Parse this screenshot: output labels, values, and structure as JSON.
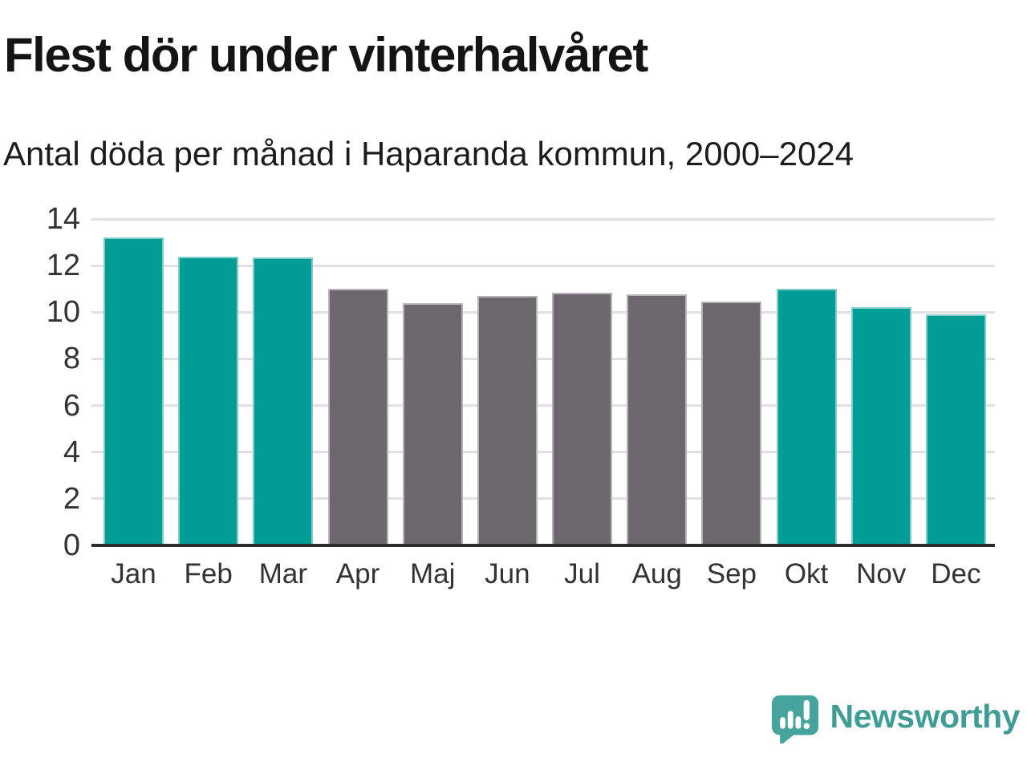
{
  "header": {
    "title": "Flest dör under vinterhalvåret",
    "subtitle": "Antal döda per månad i Haparanda kommun, 2000–2024"
  },
  "chart_data": {
    "type": "bar",
    "title": "Flest dör under vinterhalvåret",
    "subtitle": "Antal döda per månad i Haparanda kommun, 2000–2024",
    "categories": [
      "Jan",
      "Feb",
      "Mar",
      "Apr",
      "Maj",
      "Jun",
      "Jul",
      "Aug",
      "Sep",
      "Okt",
      "Nov",
      "Dec"
    ],
    "values": [
      13.2,
      12.4,
      12.35,
      11.0,
      10.4,
      10.7,
      10.85,
      10.75,
      10.45,
      11.0,
      10.2,
      9.9
    ],
    "bar_color_keys": [
      "teal",
      "teal",
      "teal",
      "gray",
      "gray",
      "gray",
      "gray",
      "gray",
      "gray",
      "teal",
      "teal",
      "teal"
    ],
    "colors": {
      "teal": "#009c95",
      "gray": "#6b676c",
      "gridline": "#e2e0e2",
      "baseline": "#2d2d2d",
      "axis_text": "#333333"
    },
    "ylim": [
      0,
      14
    ],
    "y_ticks": [
      0,
      2,
      4,
      6,
      8,
      10,
      12,
      14
    ],
    "xlabel": "",
    "ylabel": "",
    "grid": true,
    "legend": "none"
  },
  "footer": {
    "brand": "Newsworthy",
    "brand_color": "#3f9d96",
    "logo_color": "#47a49d"
  }
}
